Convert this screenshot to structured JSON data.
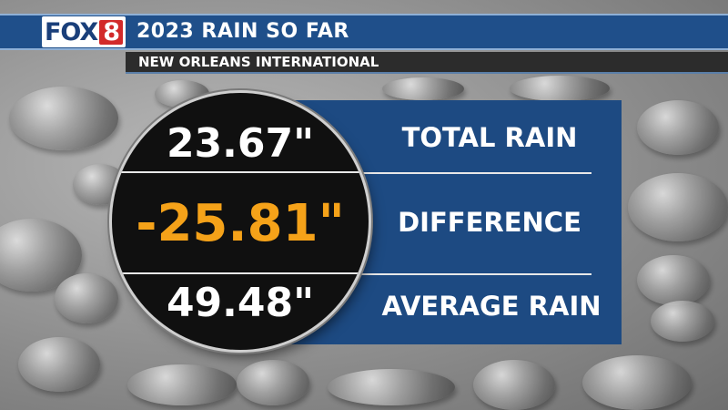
{
  "header": {
    "logo_text": "FOX",
    "logo_number": "8",
    "title": "2023 RAIN SO FAR",
    "subtitle": "NEW ORLEANS INTERNATIONAL"
  },
  "stats": [
    {
      "value": "23.67\"",
      "label": "TOTAL RAIN",
      "color": "#ffffff"
    },
    {
      "value": "-25.81\"",
      "label": "DIFFERENCE",
      "color": "#f5a219"
    },
    {
      "value": "49.48\"",
      "label": "AVERAGE RAIN",
      "color": "#ffffff"
    }
  ],
  "colors": {
    "brand_blue": "#1f4f8a",
    "panel_blue": "#1d4a82",
    "accent_orange": "#f5a219",
    "logo_red": "#d22a2a"
  },
  "icons": [
    "fleur-de-lis-icon"
  ]
}
